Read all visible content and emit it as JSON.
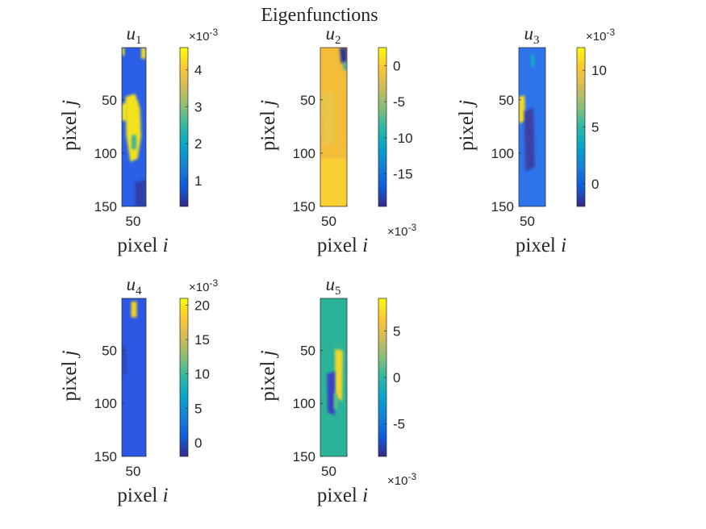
{
  "figure": {
    "title": "Eigenfunctions"
  },
  "colormap": "parula",
  "chart_data": [
    {
      "type": "heatmap",
      "title": "u1",
      "title_base": "u",
      "title_sub": "1",
      "xlabel_text": "pixel",
      "xlabel_var": "i",
      "ylabel_text": "pixel",
      "ylabel_var": "j",
      "x_ticks": [
        50
      ],
      "y_ticks": [
        50,
        100,
        150
      ],
      "xlim": [
        1,
        50
      ],
      "ylim": [
        1,
        150
      ],
      "colorbar": {
        "range": [
          0.3,
          4.6
        ],
        "ticks": [
          "1",
          "2",
          "3",
          "4"
        ],
        "tick_values": [
          1,
          2,
          3,
          4
        ],
        "exponent": "×10-3",
        "exponent_position": "top"
      }
    },
    {
      "type": "heatmap",
      "title": "u2",
      "title_base": "u",
      "title_sub": "2",
      "xlabel_text": "pixel",
      "xlabel_var": "i",
      "ylabel_text": "pixel",
      "ylabel_var": "j",
      "x_ticks": [
        50
      ],
      "y_ticks": [
        50,
        100,
        150
      ],
      "xlim": [
        1,
        50
      ],
      "ylim": [
        1,
        150
      ],
      "colorbar": {
        "range": [
          -19.5,
          2.5
        ],
        "ticks": [
          "0",
          "-5",
          "-10",
          "-15"
        ],
        "tick_values": [
          0,
          -5,
          -10,
          -15
        ],
        "exponent": "×10-3",
        "exponent_position": "bottom"
      }
    },
    {
      "type": "heatmap",
      "title": "u3",
      "title_base": "u",
      "title_sub": "3",
      "xlabel_text": "pixel",
      "xlabel_var": "i",
      "ylabel_text": "pixel",
      "ylabel_var": "j",
      "x_ticks": [
        50
      ],
      "y_ticks": [
        50,
        100,
        150
      ],
      "xlim": [
        1,
        50
      ],
      "ylim": [
        1,
        150
      ],
      "colorbar": {
        "range": [
          -2,
          12
        ],
        "ticks": [
          "10",
          "5",
          "0"
        ],
        "tick_values": [
          10,
          5,
          0
        ],
        "exponent": "×10-3",
        "exponent_position": "top"
      }
    },
    {
      "type": "heatmap",
      "title": "u4",
      "title_base": "u",
      "title_sub": "4",
      "xlabel_text": "pixel",
      "xlabel_var": "i",
      "ylabel_text": "pixel",
      "ylabel_var": "j",
      "x_ticks": [
        50
      ],
      "y_ticks": [
        50,
        100,
        150
      ],
      "xlim": [
        1,
        50
      ],
      "ylim": [
        1,
        150
      ],
      "colorbar": {
        "range": [
          -2,
          21
        ],
        "ticks": [
          "20",
          "15",
          "10",
          "5",
          "0"
        ],
        "tick_values": [
          20,
          15,
          10,
          5,
          0
        ],
        "exponent": "×10-3",
        "exponent_position": "top"
      }
    },
    {
      "type": "heatmap",
      "title": "u5",
      "title_base": "u",
      "title_sub": "5",
      "xlabel_text": "pixel",
      "xlabel_var": "i",
      "ylabel_text": "pixel",
      "ylabel_var": "j",
      "x_ticks": [
        50
      ],
      "y_ticks": [
        50,
        100,
        150
      ],
      "xlim": [
        1,
        50
      ],
      "ylim": [
        1,
        150
      ],
      "colorbar": {
        "range": [
          -8.5,
          8.5
        ],
        "ticks": [
          "5",
          "0",
          "-5"
        ],
        "tick_values": [
          5,
          0,
          -5
        ],
        "exponent": "×10-3",
        "exponent_position": "bottom"
      }
    }
  ]
}
